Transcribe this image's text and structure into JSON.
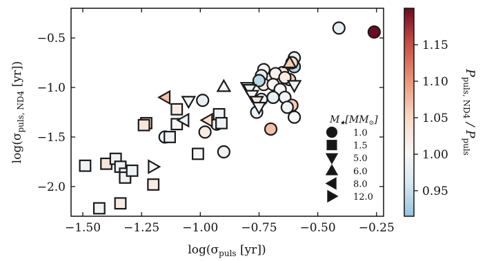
{
  "chart_data": {
    "type": "scatter",
    "xlabel_main": "log(σ",
    "xlabel_sub": "puls",
    "xlabel_tail": " [yr])",
    "ylabel_main": "log(σ",
    "ylabel_sub": "puls, ND4",
    "ylabel_tail": " [yr])",
    "xlim": [
      -1.55,
      -0.22
    ],
    "ylim": [
      -2.3,
      -0.2
    ],
    "xticks": [
      -1.5,
      -1.25,
      -1.0,
      -0.75,
      -0.5,
      -0.25
    ],
    "xtick_labels": [
      "−1.50",
      "−1.25",
      "−1.00",
      "−0.75",
      "−0.50",
      "−0.25"
    ],
    "yticks": [
      -2.0,
      -1.5,
      -1.0,
      -0.5
    ],
    "ytick_labels": [
      "−2.0",
      "−1.5",
      "−1.0",
      "−0.5"
    ],
    "colorbar": {
      "label_main": "P",
      "label_sub1": "puls, ND4",
      "label_mid": " / P",
      "label_sub2": "puls",
      "range": [
        0.915,
        1.2
      ],
      "ticks": [
        0.95,
        1.0,
        1.05,
        1.1,
        1.15
      ],
      "tick_labels": [
        "0.95",
        "1.00",
        "1.05",
        "1.10",
        "1.15"
      ],
      "colormap": "RdBu_r"
    },
    "legend": {
      "title_main": "M",
      "title_star": "★",
      "title_bracket": "[M",
      "title_sun": "⊙",
      "title_close": "]",
      "position": "lower-right",
      "entries": [
        {
          "label": "1.0",
          "marker": "circle"
        },
        {
          "label": "1.5",
          "marker": "square"
        },
        {
          "label": "5.0",
          "marker": "triangle-down"
        },
        {
          "label": "6.0",
          "marker": "triangle-up"
        },
        {
          "label": "8.0",
          "marker": "triangle-left"
        },
        {
          "label": "12.0",
          "marker": "triangle-right"
        }
      ]
    },
    "series": [
      {
        "mass": "1.0",
        "marker": "circle",
        "points": [
          {
            "x": -0.26,
            "y": -0.44,
            "c": 1.2
          },
          {
            "x": -0.41,
            "y": -0.4,
            "c": 0.98
          },
          {
            "x": -0.6,
            "y": -0.7,
            "c": 0.98
          },
          {
            "x": -0.6,
            "y": -0.79,
            "c": 0.94
          },
          {
            "x": -0.61,
            "y": -0.75,
            "c": 1.05
          },
          {
            "x": -0.65,
            "y": -0.85,
            "c": 1.03
          },
          {
            "x": -0.68,
            "y": -0.86,
            "c": 1.01
          },
          {
            "x": -0.62,
            "y": -0.92,
            "c": 1.06
          },
          {
            "x": -0.64,
            "y": -0.9,
            "c": 1.02
          },
          {
            "x": -0.73,
            "y": -0.82,
            "c": 1.0
          },
          {
            "x": -0.74,
            "y": -0.88,
            "c": 0.98
          },
          {
            "x": -0.73,
            "y": -0.97,
            "c": 1.02
          },
          {
            "x": -0.75,
            "y": -0.93,
            "c": 0.94
          },
          {
            "x": -0.69,
            "y": -0.97,
            "c": 1.0
          },
          {
            "x": -0.66,
            "y": -1.02,
            "c": 1.0
          },
          {
            "x": -0.74,
            "y": -1.12,
            "c": 0.99
          },
          {
            "x": -0.69,
            "y": -1.1,
            "c": 0.98
          },
          {
            "x": -0.64,
            "y": -1.1,
            "c": 0.99
          },
          {
            "x": -0.61,
            "y": -1.18,
            "c": 1.06
          },
          {
            "x": -0.63,
            "y": -1.2,
            "c": 0.99
          },
          {
            "x": -0.6,
            "y": -1.3,
            "c": 1.0
          },
          {
            "x": -0.76,
            "y": -1.25,
            "c": 0.99
          },
          {
            "x": -0.7,
            "y": -1.42,
            "c": 1.07
          },
          {
            "x": -0.99,
            "y": -1.13,
            "c": 0.98
          },
          {
            "x": -0.98,
            "y": -1.45,
            "c": 1.02
          },
          {
            "x": -0.93,
            "y": -1.37,
            "c": 0.99
          },
          {
            "x": -0.9,
            "y": -1.65,
            "c": 0.99
          },
          {
            "x": -1.15,
            "y": -1.5,
            "c": 1.0
          }
        ]
      },
      {
        "mass": "1.5",
        "marker": "square",
        "points": [
          {
            "x": -1.49,
            "y": -1.79,
            "c": 0.99
          },
          {
            "x": -1.43,
            "y": -2.22,
            "c": 0.99
          },
          {
            "x": -1.4,
            "y": -1.77,
            "c": 1.03
          },
          {
            "x": -1.36,
            "y": -1.72,
            "c": 0.99
          },
          {
            "x": -1.34,
            "y": -2.17,
            "c": 1.02
          },
          {
            "x": -1.34,
            "y": -1.8,
            "c": 0.99
          },
          {
            "x": -1.32,
            "y": -1.87,
            "c": 0.99
          },
          {
            "x": -1.32,
            "y": -1.91,
            "c": 0.99
          },
          {
            "x": -1.29,
            "y": -1.84,
            "c": 0.99
          },
          {
            "x": -1.23,
            "y": -1.36,
            "c": 1.04
          },
          {
            "x": -1.24,
            "y": -1.38,
            "c": 1.03
          },
          {
            "x": -1.2,
            "y": -1.98,
            "c": 1.02
          },
          {
            "x": -1.13,
            "y": -1.5,
            "c": 0.99
          },
          {
            "x": -1.1,
            "y": -1.37,
            "c": 1.0
          },
          {
            "x": -1.1,
            "y": -1.22,
            "c": 1.02
          },
          {
            "x": -1.01,
            "y": -1.67,
            "c": 1.0
          },
          {
            "x": -0.92,
            "y": -1.27,
            "c": 0.99
          },
          {
            "x": -0.91,
            "y": -1.36,
            "c": 0.99
          }
        ]
      },
      {
        "mass": "5.0",
        "marker": "triangle-down",
        "points": [
          {
            "x": -0.8,
            "y": -1.0,
            "c": 1.0
          },
          {
            "x": -0.79,
            "y": -1.02,
            "c": 0.99
          },
          {
            "x": -0.78,
            "y": -1.08,
            "c": 1.0
          },
          {
            "x": -0.76,
            "y": -1.14,
            "c": 1.03
          },
          {
            "x": -0.75,
            "y": -1.2,
            "c": 1.0
          },
          {
            "x": -0.6,
            "y": -0.98,
            "c": 0.99
          },
          {
            "x": -1.05,
            "y": -1.14,
            "c": 0.99
          }
        ]
      },
      {
        "mass": "6.0",
        "marker": "triangle-up",
        "points": [
          {
            "x": -0.9,
            "y": -0.99,
            "c": 1.0
          },
          {
            "x": -0.62,
            "y": -0.75,
            "c": 1.06
          }
        ]
      },
      {
        "mass": "8.0",
        "marker": "triangle-left",
        "points": [
          {
            "x": -1.15,
            "y": -1.1,
            "c": 1.07
          },
          {
            "x": -1.07,
            "y": -1.33,
            "c": 0.99
          },
          {
            "x": -0.97,
            "y": -1.33,
            "c": 1.04
          }
        ]
      },
      {
        "mass": "12.0",
        "marker": "triangle-right",
        "points": [
          {
            "x": -1.2,
            "y": -1.8,
            "c": 1.0
          }
        ]
      }
    ]
  }
}
